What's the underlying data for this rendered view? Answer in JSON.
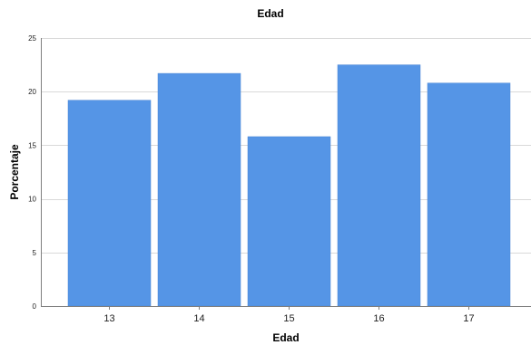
{
  "chart_data": {
    "type": "bar",
    "title": "Edad",
    "xlabel": "Edad",
    "ylabel": "Porcentaje",
    "categories": [
      "13",
      "14",
      "15",
      "16",
      "17"
    ],
    "values": [
      19.2,
      21.7,
      15.8,
      22.5,
      20.8
    ],
    "ylim": [
      0,
      25
    ],
    "yticks": [
      "0",
      "5",
      "10",
      "15",
      "20",
      "25"
    ],
    "grid": true,
    "bar_color": "#5595e6",
    "bar_edge_color": "#4a86d4"
  }
}
